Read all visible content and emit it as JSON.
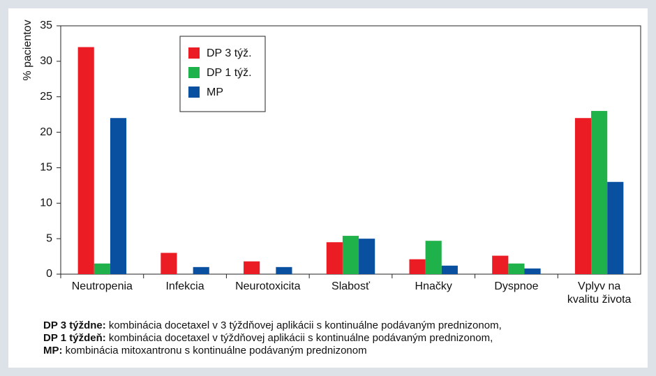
{
  "chart_data": {
    "type": "bar",
    "ylabel": "% pacientov",
    "categories": [
      "Neutropenia",
      "Infekcia",
      "Neurotoxicita",
      "Slabosť",
      "Hnačky",
      "Dyspnoe",
      "Vplyv na\nkvalitu života"
    ],
    "series": [
      {
        "name": "DP 3 týž.",
        "color": "#ec1c24",
        "values": [
          32,
          3,
          1.8,
          4.5,
          2.1,
          2.6,
          22
        ]
      },
      {
        "name": "DP 1 týž.",
        "color": "#1fb14a",
        "values": [
          1.5,
          0,
          0,
          5.4,
          4.7,
          1.5,
          23
        ]
      },
      {
        "name": "MP",
        "color": "#0a50a1",
        "values": [
          22,
          1,
          1,
          5,
          1.2,
          0.8,
          13
        ]
      }
    ],
    "ylim": [
      0,
      35
    ],
    "yticks": [
      0,
      5,
      10,
      15,
      20,
      25,
      30,
      35
    ],
    "legend": "upper-left",
    "notes": [
      {
        "term": "DP 3 týždne:",
        "text": "kombinácia docetaxel v 3 týždňovej aplikácii s kontinuálne podávaným prednizonom,"
      },
      {
        "term": "DP 1 týždeň:",
        "text": "kombinácia docetaxel v týždňovej aplikácii s kontinuálne podávaným prednizonom,"
      },
      {
        "term": "MP:",
        "text": "kombinácia mitoxantronu s kontinuálne podávaným prednizonom"
      }
    ]
  }
}
